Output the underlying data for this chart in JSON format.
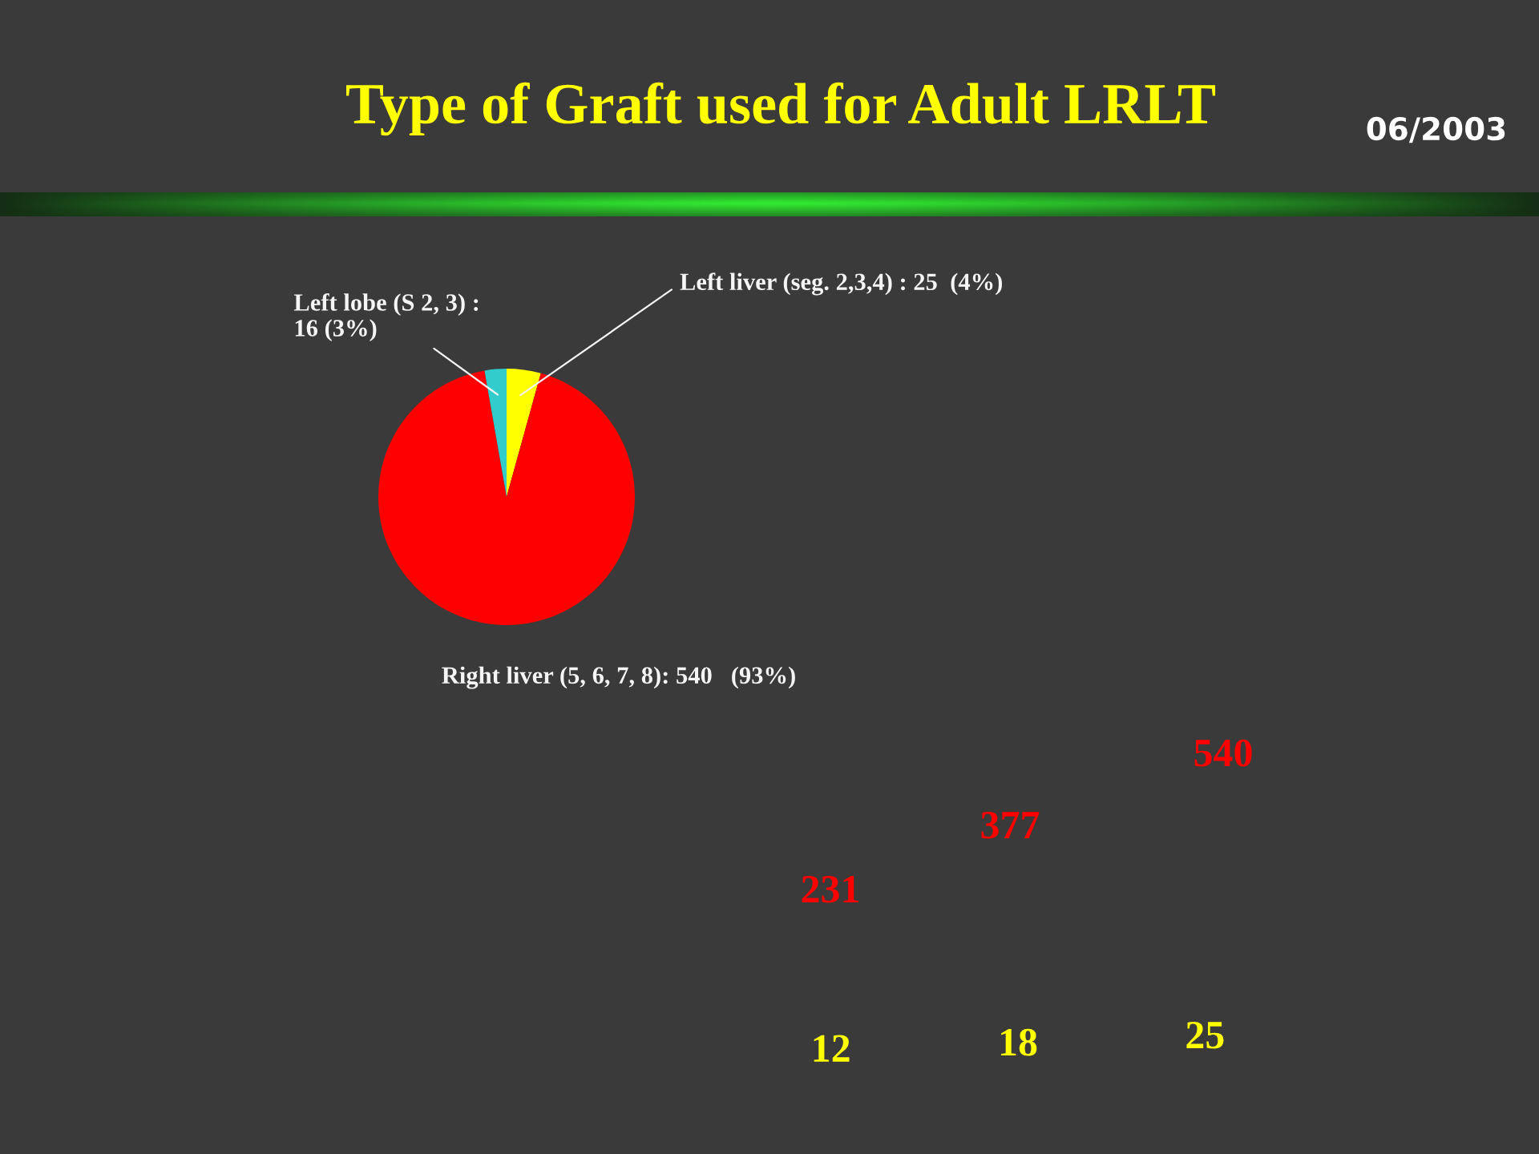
{
  "chart_data": [
    {
      "type": "pie",
      "title": "Type of Graft used for Adult LRLT",
      "categories": [
        "Left liver (seg. 2,3,4) : 25  (4%)",
        "Right liver (5, 6, 7, 8): 540   (93%)",
        "Left lobe (S 2, 3) :\n16 (3%)"
      ],
      "values": [
        25,
        540,
        16
      ],
      "colors": [
        "#ffff00",
        "#ff0000",
        "#33cccc"
      ],
      "annotations": [
        "06/2003"
      ]
    },
    {
      "type": "other",
      "annotations": [
        "231",
        "377",
        "540"
      ],
      "color": "#ff0000"
    },
    {
      "type": "other",
      "categories": [
        null,
        null,
        null
      ],
      "values": [
        12,
        18,
        25
      ],
      "color": "#ffff00",
      "data_labels": true
    }
  ]
}
